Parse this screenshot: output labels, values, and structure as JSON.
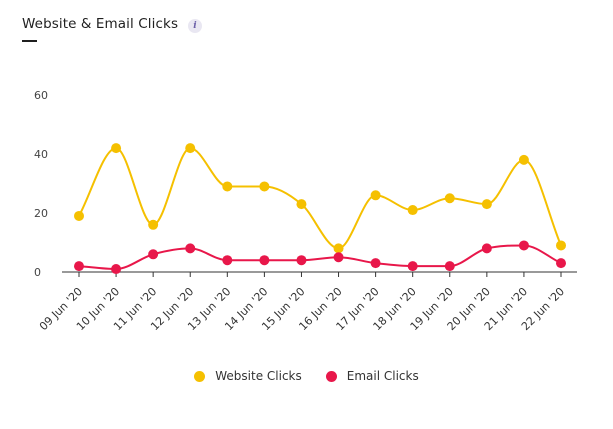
{
  "header": {
    "title": "Website & Email Clicks",
    "info_label": "i"
  },
  "chart_data": {
    "type": "line",
    "title": "Website & Email Clicks",
    "categories": [
      "09 Jun '20",
      "10 Jun '20",
      "11 Jun '20",
      "12 Jun '20",
      "13 Jun '20",
      "14 Jun '20",
      "15 Jun '20",
      "16 Jun '20",
      "17 Jun '20",
      "18 Jun '20",
      "19 Jun '20",
      "20 Jun '20",
      "21 Jun '20",
      "22 Jun '20"
    ],
    "series": [
      {
        "name": "Website Clicks",
        "color": "#f5c000",
        "values": [
          19,
          42,
          16,
          42,
          29,
          29,
          23,
          8,
          26,
          21,
          25,
          23,
          38,
          9
        ]
      },
      {
        "name": "Email Clicks",
        "color": "#e8174a",
        "values": [
          2,
          1,
          6,
          8,
          4,
          4,
          4,
          5,
          3,
          2,
          2,
          8,
          9,
          3
        ]
      }
    ],
    "y_ticks": [
      0,
      20,
      40,
      60
    ],
    "ylim": [
      0,
      60
    ],
    "xlabel": "",
    "ylabel": "",
    "grid": false,
    "curve": "smooth",
    "legend_position": "bottom-center"
  }
}
